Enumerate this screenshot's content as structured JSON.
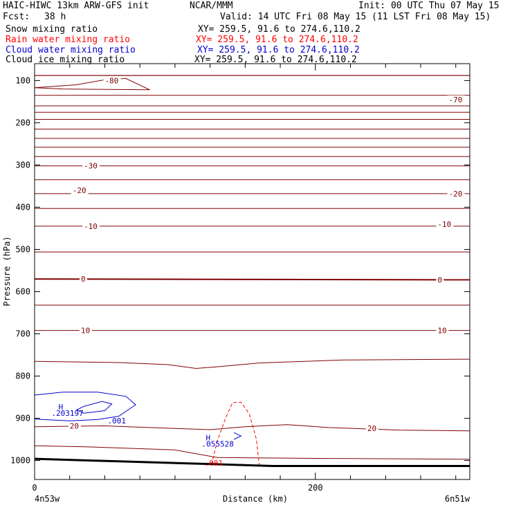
{
  "header": {
    "model": "HAIC-HIWC 13km ARW-GFS init",
    "org": "NCAR/MMM",
    "init": "Init: 00 UTC Thu 07 May 15",
    "fcst_label": "Fcst:",
    "fcst_value": "38 h",
    "valid": "Valid: 14 UTC Fri 08 May 15 (11 LST Fri 08 May 15)"
  },
  "fields": [
    {
      "name": "Snow mixing ratio",
      "xy": "XY= 259.5, 91.6 to 274.6,110.2",
      "color": "#000000"
    },
    {
      "name": "Rain water mixing ratio",
      "xy": "XY= 259.5, 91.6 to 274.6,110.2",
      "color": "#ff0000"
    },
    {
      "name": "Cloud water mixing ratio",
      "xy": "XY= 259.5, 91.6 to 274.6,110.2",
      "color": "#0000cc"
    },
    {
      "name": "Cloud ice mixing ratio",
      "xy": "XY= 259.5, 91.6 to 274.6,110.2",
      "color": "#000000"
    }
  ],
  "colors": {
    "temperature": "#800000",
    "rain": "#ff0000",
    "cloud_water": "#0000cc",
    "terrain": "#000000"
  },
  "chart_data": {
    "type": "line",
    "xlabel": "Distance (km)",
    "ylabel": "Pressure (hPa)",
    "xlim": [
      0,
      310
    ],
    "ylim": [
      1045,
      60
    ],
    "x_ticks": [
      0,
      200
    ],
    "y_ticks": [
      100,
      200,
      300,
      400,
      500,
      600,
      700,
      800,
      900,
      1000
    ],
    "left_endpoint": "4n53w",
    "right_endpoint": "6n51w",
    "isotherm_pressures": [
      88,
      135,
      160,
      175,
      192,
      215,
      237,
      258,
      280,
      302,
      335,
      368,
      403,
      445,
      506,
      570,
      632,
      692,
      765,
      865,
      930
    ],
    "isotherm_labels": [
      {
        "text": "-80",
        "x": 50,
        "p": 100
      },
      {
        "text": "-70",
        "x": 295,
        "p": 145
      },
      {
        "text": "-30",
        "x": 35,
        "p": 302
      },
      {
        "text": "-20",
        "x": 27,
        "p": 360
      },
      {
        "text": "-20",
        "x": 295,
        "p": 368
      },
      {
        "text": "-10",
        "x": 35,
        "p": 445
      },
      {
        "text": "-10",
        "x": 287,
        "p": 440
      },
      {
        "text": "0",
        "x": 33,
        "p": 570
      },
      {
        "text": "0",
        "x": 287,
        "p": 572
      },
      {
        "text": "10",
        "x": 33,
        "p": 692
      },
      {
        "text": "10",
        "x": 287,
        "p": 692
      },
      {
        "text": "20",
        "x": 25,
        "p": 918
      },
      {
        "text": "20",
        "x": 237,
        "p": 924
      }
    ],
    "cloud_water_labels": [
      {
        "text": "H",
        "x": 17,
        "p": 873
      },
      {
        "text": ".203197",
        "x": 12,
        "p": 888
      },
      {
        "text": ".001",
        "x": 52,
        "p": 906
      },
      {
        "text": "H",
        "x": 122,
        "p": 946
      },
      {
        "text": ".055528",
        "x": 119,
        "p": 961
      }
    ],
    "rain_labels": [
      {
        "text": ".001",
        "x": 121,
        "p": 1006
      }
    ]
  }
}
